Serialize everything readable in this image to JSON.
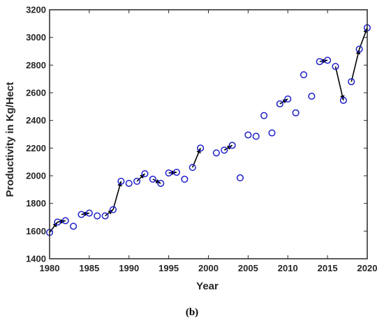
{
  "chart_data": {
    "type": "scatter",
    "xlabel": "Year",
    "ylabel": "Productivity in Kg/Hect",
    "xlim": [
      1980,
      2020
    ],
    "ylim": [
      1400,
      3200
    ],
    "x_ticks": [
      1980,
      1985,
      1990,
      1995,
      2000,
      2005,
      2010,
      2015,
      2020
    ],
    "y_ticks": [
      1400,
      1600,
      1800,
      2000,
      2200,
      2400,
      2600,
      2800,
      3000,
      3200
    ],
    "grid": false,
    "marker": "open-circle",
    "series": [
      {
        "x": [
          1980,
          1981,
          1982,
          1983,
          1984,
          1985,
          1986,
          1987,
          1988,
          1989,
          1990,
          1991,
          1992,
          1993,
          1994,
          1995,
          1996,
          1997,
          1998,
          1999,
          2001,
          2002,
          2003,
          2004,
          2005,
          2006,
          2007,
          2008,
          2009,
          2010,
          2011,
          2012,
          2013,
          2014,
          2015,
          2016,
          2017,
          2018,
          2019,
          2020
        ],
        "values": [
          1590,
          1665,
          1675,
          1635,
          1720,
          1730,
          1710,
          1710,
          1755,
          1960,
          1945,
          1960,
          2015,
          1975,
          1945,
          2020,
          2025,
          1975,
          2060,
          2200,
          2165,
          2185,
          2220,
          1985,
          2295,
          2285,
          2435,
          2310,
          2520,
          2555,
          2455,
          2730,
          2575,
          2825,
          2835,
          2790,
          2545,
          2680,
          2915,
          3070
        ]
      }
    ],
    "arrows": [
      {
        "from": [
          1980,
          1590
        ],
        "to": [
          1981,
          1665
        ]
      },
      {
        "from": [
          1981,
          1665
        ],
        "to": [
          1982,
          1675
        ]
      },
      {
        "from": [
          1984,
          1720
        ],
        "to": [
          1985,
          1730
        ]
      },
      {
        "from": [
          1987,
          1710
        ],
        "to": [
          1988,
          1755
        ]
      },
      {
        "from": [
          1988,
          1755
        ],
        "to": [
          1989,
          1960
        ]
      },
      {
        "from": [
          1991,
          1960
        ],
        "to": [
          1992,
          2015
        ]
      },
      {
        "from": [
          1993,
          1975
        ],
        "to": [
          1994,
          1945
        ]
      },
      {
        "from": [
          1995,
          2020
        ],
        "to": [
          1996,
          2025
        ]
      },
      {
        "from": [
          1998,
          2060
        ],
        "to": [
          1999,
          2200
        ]
      },
      {
        "from": [
          2002,
          2185
        ],
        "to": [
          2003,
          2220
        ]
      },
      {
        "from": [
          2009,
          2520
        ],
        "to": [
          2010,
          2555
        ]
      },
      {
        "from": [
          2014,
          2825
        ],
        "to": [
          2015,
          2835
        ]
      },
      {
        "from": [
          2016,
          2790
        ],
        "to": [
          2017,
          2545
        ]
      },
      {
        "from": [
          2018,
          2680
        ],
        "to": [
          2019,
          2915
        ]
      },
      {
        "from": [
          2019,
          2915
        ],
        "to": [
          2020,
          3070
        ]
      }
    ],
    "colors": {
      "marker": "#1f1fcc",
      "arrow": "#000000",
      "axis": "#262626"
    }
  },
  "panel_label": "(b)"
}
